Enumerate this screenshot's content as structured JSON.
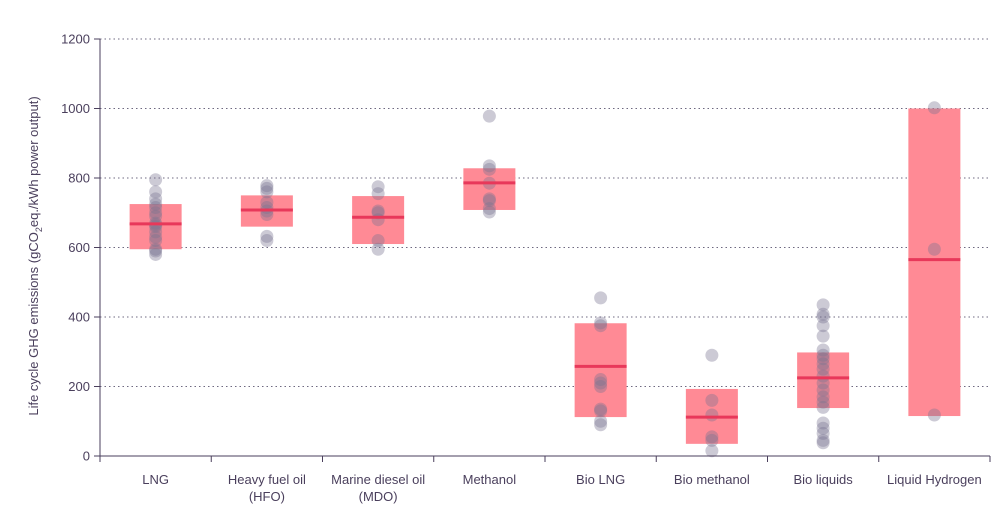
{
  "chart_data": {
    "type": "box-scatter",
    "ylabel_parts": [
      "Life cycle GHG emissions (gCO",
      "2",
      "eq./kWh power output)"
    ],
    "ylim": [
      0,
      1200
    ],
    "yticks": [
      "0",
      "200",
      "400",
      "600",
      "800",
      "1000",
      "1200"
    ],
    "grid": "horizontal dotted",
    "categories": [
      {
        "label_lines": [
          "LNG"
        ],
        "range": [
          595,
          725
        ],
        "median": 668,
        "points": [
          580,
          590,
          595,
          620,
          630,
          645,
          660,
          665,
          670,
          690,
          700,
          715,
          725,
          740,
          760,
          795
        ]
      },
      {
        "label_lines": [
          "Heavy fuel oil",
          "(HFO)"
        ],
        "range": [
          660,
          750
        ],
        "median": 708,
        "points": [
          620,
          632,
          695,
          705,
          715,
          730,
          760,
          770,
          778
        ]
      },
      {
        "label_lines": [
          "Marine diesel oil",
          "(MDO)"
        ],
        "range": [
          610,
          748
        ],
        "median": 687,
        "points": [
          595,
          620,
          680,
          700,
          705,
          755,
          775
        ]
      },
      {
        "label_lines": [
          "Methanol"
        ],
        "range": [
          708,
          828
        ],
        "median": 786,
        "points": [
          702,
          712,
          735,
          740,
          785,
          825,
          835,
          978
        ]
      },
      {
        "label_lines": [
          "Bio LNG"
        ],
        "range": [
          112,
          382
        ],
        "median": 258,
        "points": [
          90,
          100,
          130,
          135,
          200,
          210,
          220,
          375,
          383,
          455
        ]
      },
      {
        "label_lines": [
          "Bio methanol"
        ],
        "range": [
          35,
          193
        ],
        "median": 112,
        "points": [
          15,
          45,
          55,
          118,
          160,
          290
        ]
      },
      {
        "label_lines": [
          "Bio liquids"
        ],
        "range": [
          138,
          298
        ],
        "median": 225,
        "points": [
          38,
          45,
          65,
          80,
          95,
          140,
          155,
          170,
          190,
          210,
          230,
          250,
          265,
          280,
          290,
          305,
          345,
          375,
          400,
          408,
          435
        ]
      },
      {
        "label_lines": [
          "Liquid  Hydrogen"
        ],
        "range": [
          115,
          1000
        ],
        "median": 565,
        "points": [
          118,
          595,
          1002
        ]
      }
    ],
    "colors": {
      "box": "#ff8a95",
      "median": "#e8385a",
      "point": "#7a7390",
      "grid": "#6e6880",
      "text": "#4a3f5c"
    }
  }
}
